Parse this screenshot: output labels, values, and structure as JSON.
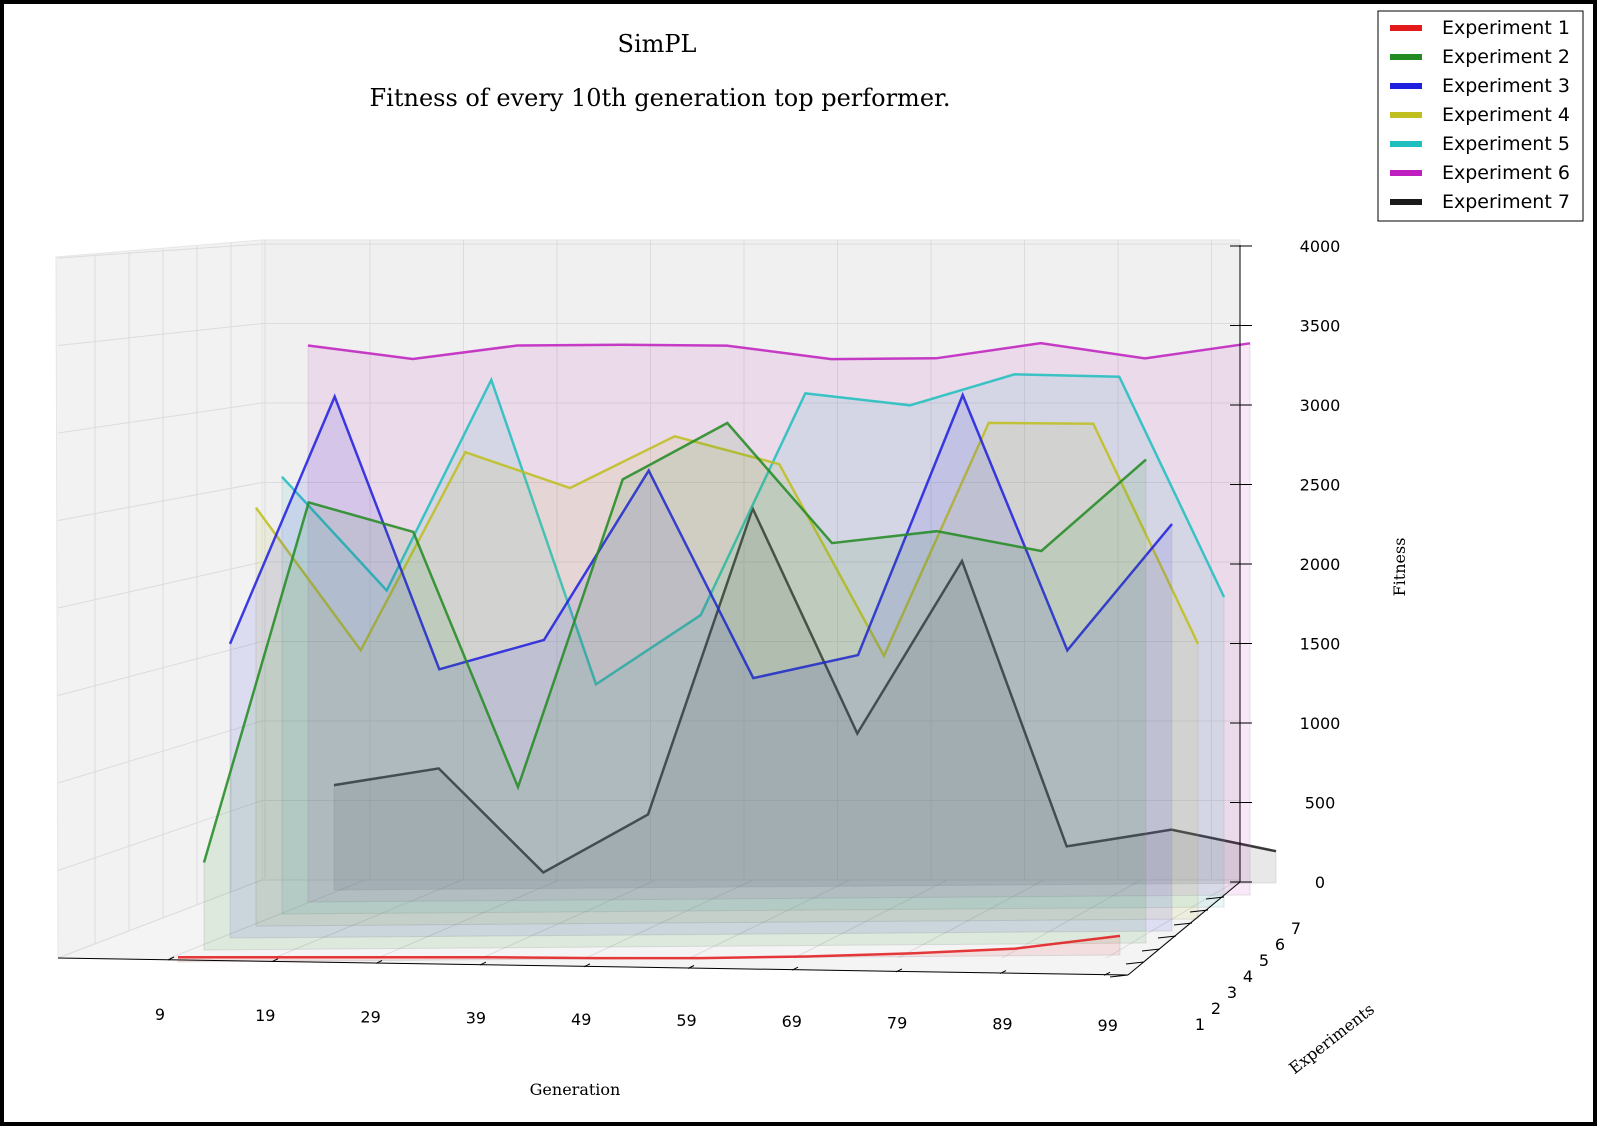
{
  "chart_data": {
    "type": "line",
    "title": "SimPL",
    "subtitle": "Fitness of every 10th generation top performer.",
    "xlabel": "Generation",
    "ylabel": "Experiments",
    "zlabel": "Fitness",
    "x_ticks": [
      "9",
      "19",
      "29",
      "39",
      "49",
      "59",
      "69",
      "79",
      "89",
      "99"
    ],
    "y_ticks": [
      "1",
      "2",
      "3",
      "4",
      "5",
      "6",
      "7"
    ],
    "z_ticks": [
      "0",
      "500",
      "1000",
      "1500",
      "2000",
      "2500",
      "3000",
      "3500",
      "4000"
    ],
    "zlim": [
      0,
      4000
    ],
    "grid": true,
    "legend_position": "top-right",
    "x": [
      9,
      19,
      29,
      39,
      49,
      59,
      69,
      79,
      89,
      99
    ],
    "series": [
      {
        "name": "Experiment 1",
        "color": "#e31a1c",
        "values": [
          30,
          25,
          20,
          15,
          5,
          0,
          5,
          20,
          45,
          120
        ]
      },
      {
        "name": "Experiment 2",
        "color": "#228b22",
        "values": [
          550,
          2810,
          2620,
          1010,
          2940,
          3290,
          2530,
          2600,
          2470,
          3040
        ]
      },
      {
        "name": "Experiment 3",
        "color": "#1f1fdf",
        "values": [
          1850,
          3400,
          1680,
          1860,
          2920,
          1610,
          1750,
          3380,
          1770,
          2560
        ]
      },
      {
        "name": "Experiment 4",
        "color": "#bfbf1f",
        "values": [
          2630,
          1730,
          2970,
          2740,
          3060,
          2880,
          1670,
          3130,
          3120,
          1730
        ]
      },
      {
        "name": "Experiment 5",
        "color": "#1fbfbf",
        "values": [
          2750,
          2030,
          3350,
          1430,
          1860,
          3250,
          3170,
          3360,
          3340,
          1950
        ]
      },
      {
        "name": "Experiment 6",
        "color": "#bf1fbf",
        "values": [
          3500,
          3410,
          3490,
          3490,
          3480,
          3390,
          3390,
          3480,
          3380,
          3470
        ]
      },
      {
        "name": "Experiment 7",
        "color": "#1a1a1a",
        "values": [
          660,
          760,
          100,
          460,
          2380,
          960,
          2040,
          240,
          340,
          200
        ]
      }
    ]
  }
}
